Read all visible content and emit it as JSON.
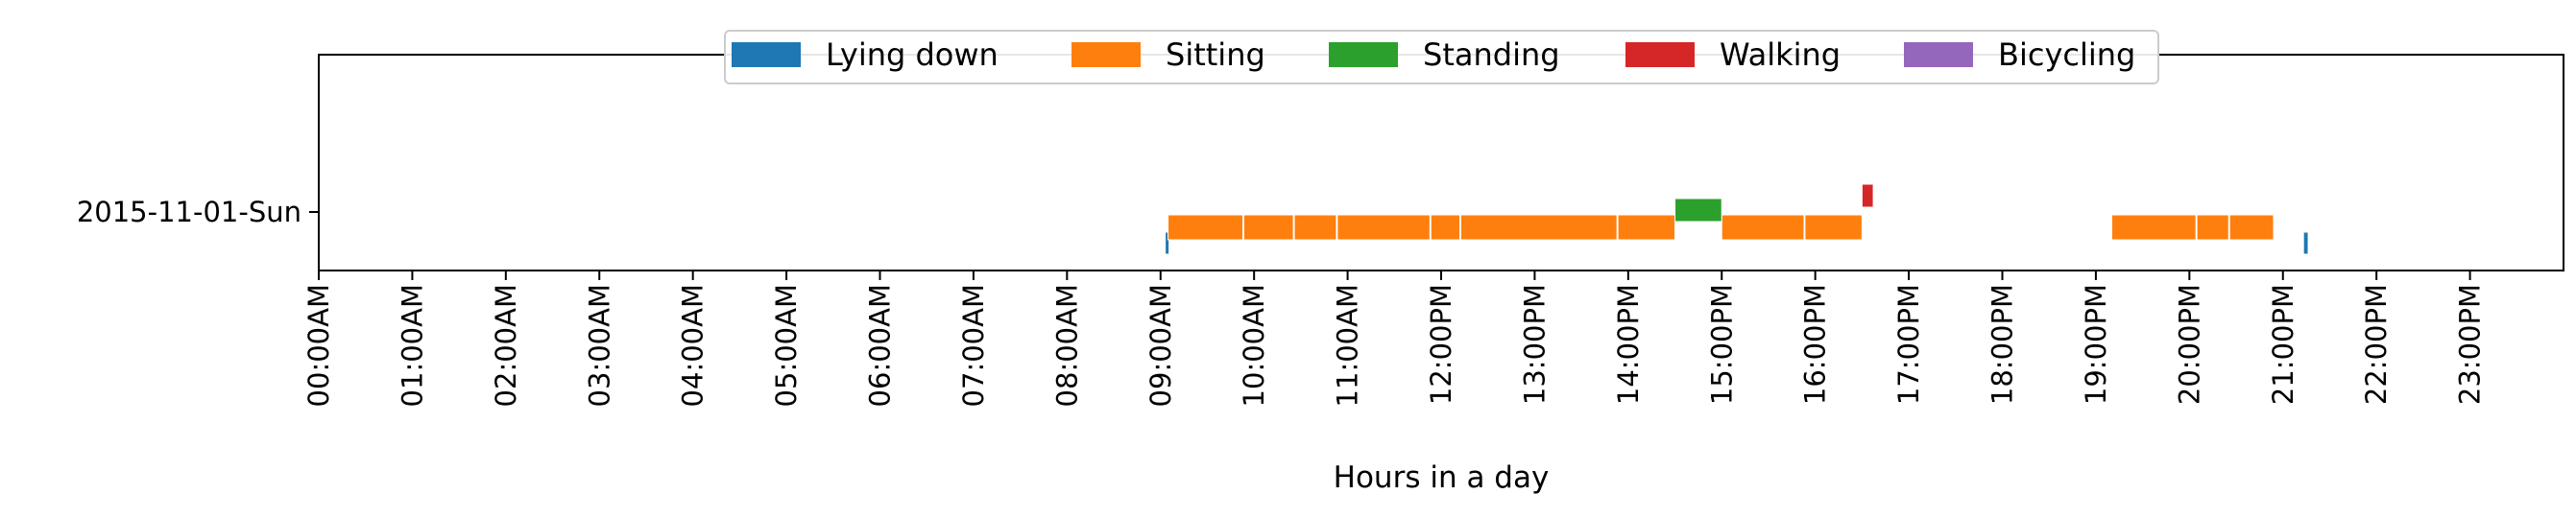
{
  "chart_data": {
    "type": "timeline",
    "xlabel": "Hours in a day",
    "ylabel": "",
    "xlim": [
      0,
      24
    ],
    "x_tick_labels": [
      "00:00AM",
      "01:00AM",
      "02:00AM",
      "03:00AM",
      "04:00AM",
      "05:00AM",
      "06:00AM",
      "07:00AM",
      "08:00AM",
      "09:00AM",
      "10:00AM",
      "11:00AM",
      "12:00PM",
      "13:00PM",
      "14:00PM",
      "15:00PM",
      "16:00PM",
      "17:00PM",
      "18:00PM",
      "19:00PM",
      "20:00PM",
      "21:00PM",
      "22:00PM",
      "23:00PM"
    ],
    "y_categories": [
      "2015-11-01-Sun"
    ],
    "legend_placement": "top-center",
    "grid": false,
    "series": [
      {
        "name": "Lying down",
        "color": "#1f77b4",
        "intervals": [
          [
            9.05,
            9.09
          ],
          [
            21.22,
            21.27
          ]
        ]
      },
      {
        "name": "Sitting",
        "color": "#ff7f0e",
        "intervals": [
          [
            9.08,
            9.88
          ],
          [
            9.89,
            10.42
          ],
          [
            10.43,
            10.88
          ],
          [
            10.89,
            11.88
          ],
          [
            11.89,
            12.2
          ],
          [
            12.21,
            13.88
          ],
          [
            13.89,
            14.5
          ],
          [
            15.0,
            15.88
          ],
          [
            15.89,
            16.5
          ],
          [
            19.17,
            20.07
          ],
          [
            20.08,
            20.42
          ],
          [
            20.43,
            20.9
          ]
        ]
      },
      {
        "name": "Standing",
        "color": "#2ca02c",
        "intervals": [
          [
            14.5,
            15.0
          ]
        ]
      },
      {
        "name": "Walking",
        "color": "#d62728",
        "intervals": [
          [
            16.5,
            16.62
          ]
        ]
      },
      {
        "name": "Bicycling",
        "color": "#9467bd",
        "intervals": []
      }
    ]
  }
}
